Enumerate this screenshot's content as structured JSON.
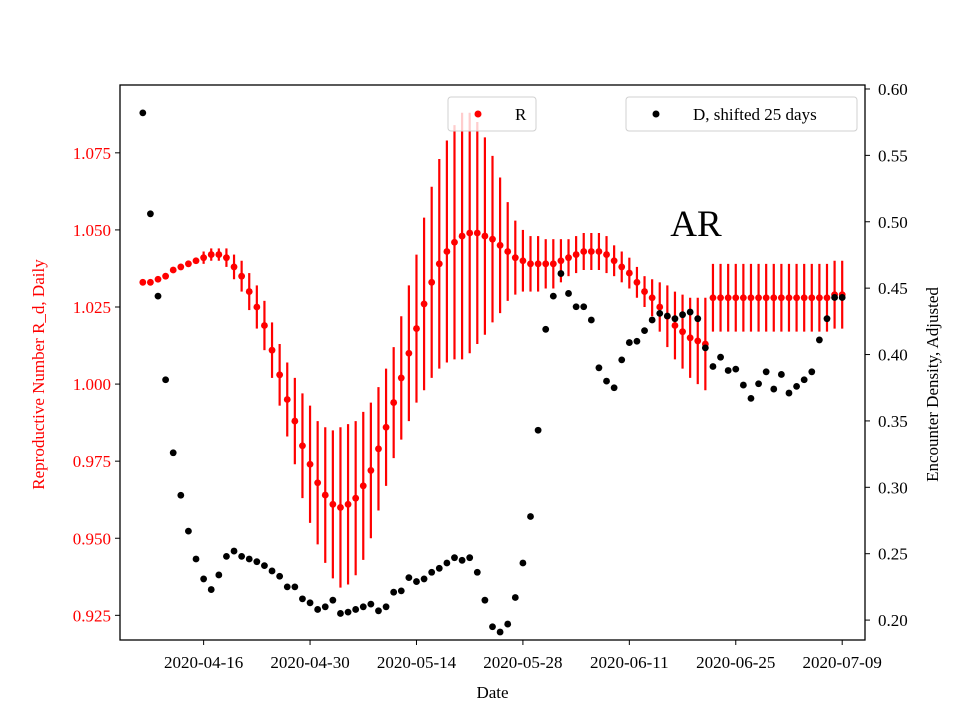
{
  "chart_data": {
    "type": "scatter",
    "xlabel": "Date",
    "ylabel_left": "Reproductive Number R_d, Daily",
    "ylabel_right": "Encounter Density, Adjusted",
    "annotation": "AR",
    "x_start": "2020-04-08",
    "xticks": [
      "2020-04-16",
      "2020-04-30",
      "2020-05-14",
      "2020-05-28",
      "2020-06-11",
      "2020-06-25",
      "2020-07-09"
    ],
    "xlim": [
      "2020-04-05",
      "2020-07-12"
    ],
    "yticks_left": [
      "0.925",
      "0.950",
      "0.975",
      "1.000",
      "1.025",
      "1.050",
      "1.075"
    ],
    "ylim_left": [
      0.917,
      1.097
    ],
    "yticks_right": [
      "0.20",
      "0.25",
      "0.30",
      "0.35",
      "0.40",
      "0.45",
      "0.50",
      "0.55",
      "0.60"
    ],
    "ylim_right": [
      0.185,
      0.603
    ],
    "colors": {
      "R": "#ff0000",
      "D": "#000000"
    },
    "legend": [
      {
        "label": "R",
        "color": "#ff0000",
        "position": "top-center"
      },
      {
        "label": "D, shifted 25 days",
        "color": "#000000",
        "position": "top-right"
      }
    ],
    "series": [
      {
        "name": "R",
        "axis": "left",
        "dates": [
          "2020-04-08",
          "2020-04-09",
          "2020-04-10",
          "2020-04-11",
          "2020-04-12",
          "2020-04-13",
          "2020-04-14",
          "2020-04-15",
          "2020-04-16",
          "2020-04-17",
          "2020-04-18",
          "2020-04-19",
          "2020-04-20",
          "2020-04-21",
          "2020-04-22",
          "2020-04-23",
          "2020-04-24",
          "2020-04-25",
          "2020-04-26",
          "2020-04-27",
          "2020-04-28",
          "2020-04-29",
          "2020-04-30",
          "2020-05-01",
          "2020-05-02",
          "2020-05-03",
          "2020-05-04",
          "2020-05-05",
          "2020-05-06",
          "2020-05-07",
          "2020-05-08",
          "2020-05-09",
          "2020-05-10",
          "2020-05-11",
          "2020-05-12",
          "2020-05-13",
          "2020-05-14",
          "2020-05-15",
          "2020-05-16",
          "2020-05-17",
          "2020-05-18",
          "2020-05-19",
          "2020-05-20",
          "2020-05-21",
          "2020-05-22",
          "2020-05-23",
          "2020-05-24",
          "2020-05-25",
          "2020-05-26",
          "2020-05-27",
          "2020-05-28",
          "2020-05-29",
          "2020-05-30",
          "2020-05-31",
          "2020-06-01",
          "2020-06-02",
          "2020-06-03",
          "2020-06-04",
          "2020-06-05",
          "2020-06-06",
          "2020-06-07",
          "2020-06-08",
          "2020-06-09",
          "2020-06-10",
          "2020-06-11",
          "2020-06-12",
          "2020-06-13",
          "2020-06-14",
          "2020-06-15",
          "2020-06-16",
          "2020-06-17",
          "2020-06-18",
          "2020-06-19",
          "2020-06-20",
          "2020-06-21",
          "2020-06-22",
          "2020-06-23",
          "2020-06-24",
          "2020-06-25",
          "2020-06-26",
          "2020-06-27",
          "2020-06-28",
          "2020-06-29",
          "2020-06-30",
          "2020-07-01",
          "2020-07-02",
          "2020-07-03",
          "2020-07-04",
          "2020-07-05",
          "2020-07-06",
          "2020-07-07",
          "2020-07-08",
          "2020-07-09"
        ],
        "values": [
          1.033,
          1.033,
          1.034,
          1.035,
          1.037,
          1.038,
          1.039,
          1.04,
          1.041,
          1.042,
          1.042,
          1.041,
          1.038,
          1.035,
          1.03,
          1.025,
          1.019,
          1.011,
          1.003,
          0.995,
          0.988,
          0.98,
          0.974,
          0.968,
          0.964,
          0.961,
          0.96,
          0.961,
          0.963,
          0.967,
          0.972,
          0.979,
          0.986,
          0.994,
          1.002,
          1.01,
          1.018,
          1.026,
          1.033,
          1.039,
          1.043,
          1.046,
          1.048,
          1.049,
          1.049,
          1.048,
          1.047,
          1.045,
          1.043,
          1.041,
          1.04,
          1.039,
          1.039,
          1.039,
          1.039,
          1.04,
          1.041,
          1.042,
          1.043,
          1.043,
          1.043,
          1.042,
          1.04,
          1.038,
          1.036,
          1.033,
          1.03,
          1.028,
          1.025,
          1.022,
          1.019,
          1.017,
          1.015,
          1.014,
          1.013,
          1.028,
          1.028,
          1.028,
          1.028,
          1.028,
          1.028,
          1.028,
          1.028,
          1.028,
          1.028,
          1.028,
          1.028,
          1.028,
          1.028,
          1.028,
          1.028,
          1.029,
          1.029
        ],
        "error": [
          0.0,
          0.0,
          0.0,
          0.0,
          0.0,
          0.0,
          0.0,
          0.0,
          0.002,
          0.002,
          0.002,
          0.003,
          0.004,
          0.005,
          0.006,
          0.007,
          0.008,
          0.009,
          0.01,
          0.012,
          0.014,
          0.017,
          0.019,
          0.02,
          0.022,
          0.024,
          0.026,
          0.026,
          0.025,
          0.024,
          0.022,
          0.02,
          0.019,
          0.018,
          0.02,
          0.022,
          0.024,
          0.028,
          0.031,
          0.034,
          0.036,
          0.038,
          0.04,
          0.039,
          0.036,
          0.032,
          0.027,
          0.022,
          0.016,
          0.012,
          0.01,
          0.009,
          0.009,
          0.008,
          0.008,
          0.007,
          0.006,
          0.006,
          0.006,
          0.006,
          0.006,
          0.006,
          0.005,
          0.005,
          0.005,
          0.005,
          0.005,
          0.006,
          0.008,
          0.01,
          0.011,
          0.012,
          0.013,
          0.014,
          0.015,
          0.011,
          0.011,
          0.011,
          0.011,
          0.011,
          0.011,
          0.011,
          0.011,
          0.011,
          0.011,
          0.011,
          0.011,
          0.011,
          0.011,
          0.011,
          0.011,
          0.011,
          0.011
        ]
      },
      {
        "name": "D, shifted 25 days",
        "axis": "right",
        "dates": [
          "2020-04-08",
          "2020-04-09",
          "2020-04-10",
          "2020-04-11",
          "2020-04-12",
          "2020-04-13",
          "2020-04-14",
          "2020-04-15",
          "2020-04-16",
          "2020-04-17",
          "2020-04-18",
          "2020-04-19",
          "2020-04-20",
          "2020-04-21",
          "2020-04-22",
          "2020-04-23",
          "2020-04-24",
          "2020-04-25",
          "2020-04-26",
          "2020-04-27",
          "2020-04-28",
          "2020-04-29",
          "2020-04-30",
          "2020-05-01",
          "2020-05-02",
          "2020-05-03",
          "2020-05-04",
          "2020-05-05",
          "2020-05-06",
          "2020-05-07",
          "2020-05-08",
          "2020-05-09",
          "2020-05-10",
          "2020-05-11",
          "2020-05-12",
          "2020-05-13",
          "2020-05-14",
          "2020-05-15",
          "2020-05-16",
          "2020-05-17",
          "2020-05-18",
          "2020-05-19",
          "2020-05-20",
          "2020-05-21",
          "2020-05-22",
          "2020-05-23",
          "2020-05-24",
          "2020-05-25",
          "2020-05-26",
          "2020-05-27",
          "2020-05-28",
          "2020-05-29",
          "2020-05-30",
          "2020-05-31",
          "2020-06-01",
          "2020-06-02",
          "2020-06-03",
          "2020-06-04",
          "2020-06-05",
          "2020-06-06",
          "2020-06-07",
          "2020-06-08",
          "2020-06-09",
          "2020-06-10",
          "2020-06-11",
          "2020-06-12",
          "2020-06-13",
          "2020-06-14",
          "2020-06-15",
          "2020-06-16",
          "2020-06-17",
          "2020-06-18",
          "2020-06-19",
          "2020-06-20",
          "2020-06-21",
          "2020-06-22",
          "2020-06-23",
          "2020-06-24",
          "2020-06-25",
          "2020-06-26",
          "2020-06-27",
          "2020-06-28",
          "2020-06-29",
          "2020-06-30",
          "2020-07-01",
          "2020-07-02",
          "2020-07-03",
          "2020-07-04",
          "2020-07-05",
          "2020-07-06",
          "2020-07-07",
          "2020-07-08",
          "2020-07-09"
        ],
        "values": [
          0.582,
          0.506,
          0.444,
          0.381,
          0.326,
          0.294,
          0.267,
          0.246,
          0.231,
          0.223,
          0.234,
          0.248,
          0.252,
          0.248,
          0.246,
          0.244,
          0.241,
          0.237,
          0.233,
          0.225,
          0.225,
          0.216,
          0.213,
          0.208,
          0.21,
          0.215,
          0.205,
          0.206,
          0.208,
          0.21,
          0.212,
          0.207,
          0.21,
          0.221,
          0.222,
          0.232,
          0.229,
          0.231,
          0.236,
          0.239,
          0.243,
          0.247,
          0.245,
          0.247,
          0.236,
          0.215,
          0.195,
          0.191,
          0.197,
          0.217,
          0.243,
          0.278,
          0.343,
          0.419,
          0.444,
          0.461,
          0.446,
          0.436,
          0.436,
          0.426,
          0.39,
          0.38,
          0.375,
          0.396,
          0.409,
          0.41,
          0.418,
          0.426,
          0.431,
          0.429,
          0.427,
          0.43,
          0.432,
          0.427,
          0.405,
          0.391,
          0.398,
          0.388,
          0.389,
          0.377,
          0.367,
          0.378,
          0.387,
          0.374,
          0.385,
          0.371,
          0.376,
          0.381,
          0.387,
          0.411,
          0.427,
          0.443,
          0.443
        ]
      }
    ]
  }
}
